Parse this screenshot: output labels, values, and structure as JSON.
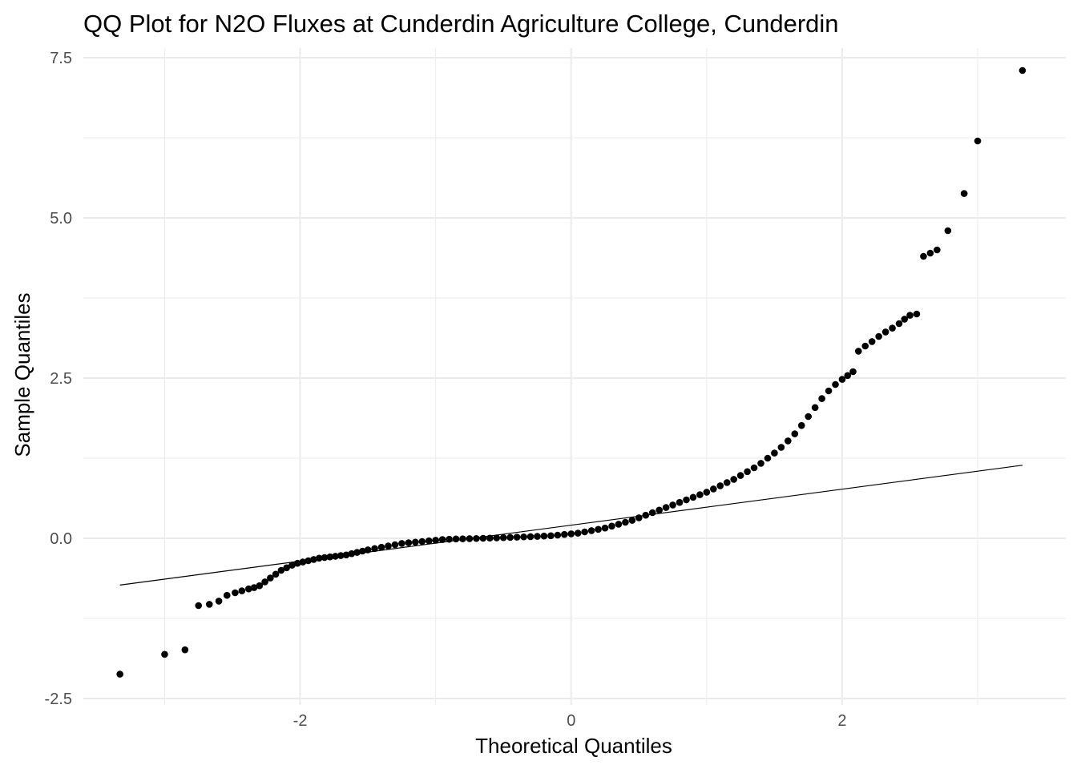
{
  "chart_data": {
    "type": "scatter",
    "title": "QQ Plot for N2O Fluxes at Cunderdin Agriculture College, Cunderdin",
    "xlabel": "Theoretical Quantiles",
    "ylabel": "Sample Quantiles",
    "xlim": [
      -3.6,
      3.65
    ],
    "ylim": [
      -2.6,
      7.65
    ],
    "x_ticks": [
      -2,
      0,
      2
    ],
    "x_tick_labels": [
      "-2",
      "0",
      "2"
    ],
    "y_ticks": [
      -2.5,
      0.0,
      2.5,
      5.0,
      7.5
    ],
    "y_tick_labels": [
      "-2.5",
      "0.0",
      "2.5",
      "5.0",
      "7.5"
    ],
    "grid": true,
    "legend": "none",
    "colors": {
      "points": "#000000",
      "line": "#000000",
      "grid": "#ebebeb",
      "tick_text": "#4d4d4d"
    },
    "reference_line": {
      "x": [
        -3.33,
        3.33
      ],
      "y": [
        -0.73,
        1.14
      ]
    },
    "series": [
      {
        "points": [
          [
            -3.33,
            -2.12
          ],
          [
            -3.0,
            -1.81
          ],
          [
            -2.85,
            -1.74
          ],
          [
            -2.75,
            -1.05
          ],
          [
            -2.67,
            -1.03
          ],
          [
            -2.6,
            -0.98
          ],
          [
            -2.54,
            -0.89
          ],
          [
            -2.48,
            -0.85
          ],
          [
            -2.43,
            -0.82
          ],
          [
            -2.38,
            -0.79
          ],
          [
            -2.34,
            -0.77
          ],
          [
            -2.3,
            -0.74
          ],
          [
            -2.26,
            -0.68
          ],
          [
            -2.22,
            -0.62
          ],
          [
            -2.18,
            -0.56
          ],
          [
            -2.14,
            -0.5
          ],
          [
            -2.1,
            -0.46
          ],
          [
            -2.06,
            -0.42
          ],
          [
            -2.02,
            -0.39
          ],
          [
            -1.98,
            -0.37
          ],
          [
            -1.94,
            -0.35
          ],
          [
            -1.9,
            -0.33
          ],
          [
            -1.86,
            -0.31
          ],
          [
            -1.82,
            -0.3
          ],
          [
            -1.78,
            -0.29
          ],
          [
            -1.74,
            -0.28
          ],
          [
            -1.7,
            -0.27
          ],
          [
            -1.66,
            -0.26
          ],
          [
            -1.62,
            -0.24
          ],
          [
            -1.58,
            -0.22
          ],
          [
            -1.54,
            -0.2
          ],
          [
            -1.5,
            -0.18
          ],
          [
            -1.45,
            -0.16
          ],
          [
            -1.4,
            -0.14
          ],
          [
            -1.35,
            -0.12
          ],
          [
            -1.3,
            -0.1
          ],
          [
            -1.25,
            -0.08
          ],
          [
            -1.2,
            -0.07
          ],
          [
            -1.15,
            -0.06
          ],
          [
            -1.1,
            -0.05
          ],
          [
            -1.05,
            -0.04
          ],
          [
            -1.0,
            -0.03
          ],
          [
            -0.95,
            -0.02
          ],
          [
            -0.9,
            -0.015
          ],
          [
            -0.85,
            -0.01
          ],
          [
            -0.8,
            -0.008
          ],
          [
            -0.75,
            -0.005
          ],
          [
            -0.7,
            -0.003
          ],
          [
            -0.65,
            0.0
          ],
          [
            -0.6,
            0.003
          ],
          [
            -0.55,
            0.006
          ],
          [
            -0.5,
            0.01
          ],
          [
            -0.45,
            0.014
          ],
          [
            -0.4,
            0.018
          ],
          [
            -0.35,
            0.022
          ],
          [
            -0.3,
            0.026
          ],
          [
            -0.25,
            0.03
          ],
          [
            -0.2,
            0.035
          ],
          [
            -0.15,
            0.04
          ],
          [
            -0.1,
            0.05
          ],
          [
            -0.05,
            0.06
          ],
          [
            0.0,
            0.07
          ],
          [
            0.05,
            0.08
          ],
          [
            0.1,
            0.1
          ],
          [
            0.15,
            0.12
          ],
          [
            0.2,
            0.14
          ],
          [
            0.25,
            0.16
          ],
          [
            0.3,
            0.19
          ],
          [
            0.35,
            0.22
          ],
          [
            0.4,
            0.25
          ],
          [
            0.45,
            0.28
          ],
          [
            0.5,
            0.32
          ],
          [
            0.55,
            0.36
          ],
          [
            0.6,
            0.4
          ],
          [
            0.65,
            0.44
          ],
          [
            0.7,
            0.48
          ],
          [
            0.75,
            0.52
          ],
          [
            0.8,
            0.56
          ],
          [
            0.85,
            0.6
          ],
          [
            0.9,
            0.64
          ],
          [
            0.95,
            0.68
          ],
          [
            1.0,
            0.72
          ],
          [
            1.05,
            0.77
          ],
          [
            1.1,
            0.82
          ],
          [
            1.15,
            0.87
          ],
          [
            1.2,
            0.92
          ],
          [
            1.25,
            0.98
          ],
          [
            1.3,
            1.04
          ],
          [
            1.35,
            1.1
          ],
          [
            1.4,
            1.17
          ],
          [
            1.45,
            1.25
          ],
          [
            1.5,
            1.33
          ],
          [
            1.55,
            1.42
          ],
          [
            1.6,
            1.52
          ],
          [
            1.65,
            1.63
          ],
          [
            1.7,
            1.76
          ],
          [
            1.75,
            1.9
          ],
          [
            1.8,
            2.04
          ],
          [
            1.85,
            2.18
          ],
          [
            1.9,
            2.3
          ],
          [
            1.95,
            2.4
          ],
          [
            2.0,
            2.48
          ],
          [
            2.04,
            2.54
          ],
          [
            2.08,
            2.6
          ],
          [
            2.12,
            2.92
          ],
          [
            2.17,
            3.0
          ],
          [
            2.22,
            3.07
          ],
          [
            2.27,
            3.15
          ],
          [
            2.32,
            3.22
          ],
          [
            2.37,
            3.28
          ],
          [
            2.42,
            3.35
          ],
          [
            2.46,
            3.42
          ],
          [
            2.5,
            3.48
          ],
          [
            2.55,
            3.5
          ],
          [
            2.6,
            4.4
          ],
          [
            2.65,
            4.45
          ],
          [
            2.7,
            4.5
          ],
          [
            2.78,
            4.8
          ],
          [
            2.9,
            5.38
          ],
          [
            3.0,
            6.2
          ],
          [
            3.33,
            7.3
          ]
        ]
      }
    ]
  }
}
